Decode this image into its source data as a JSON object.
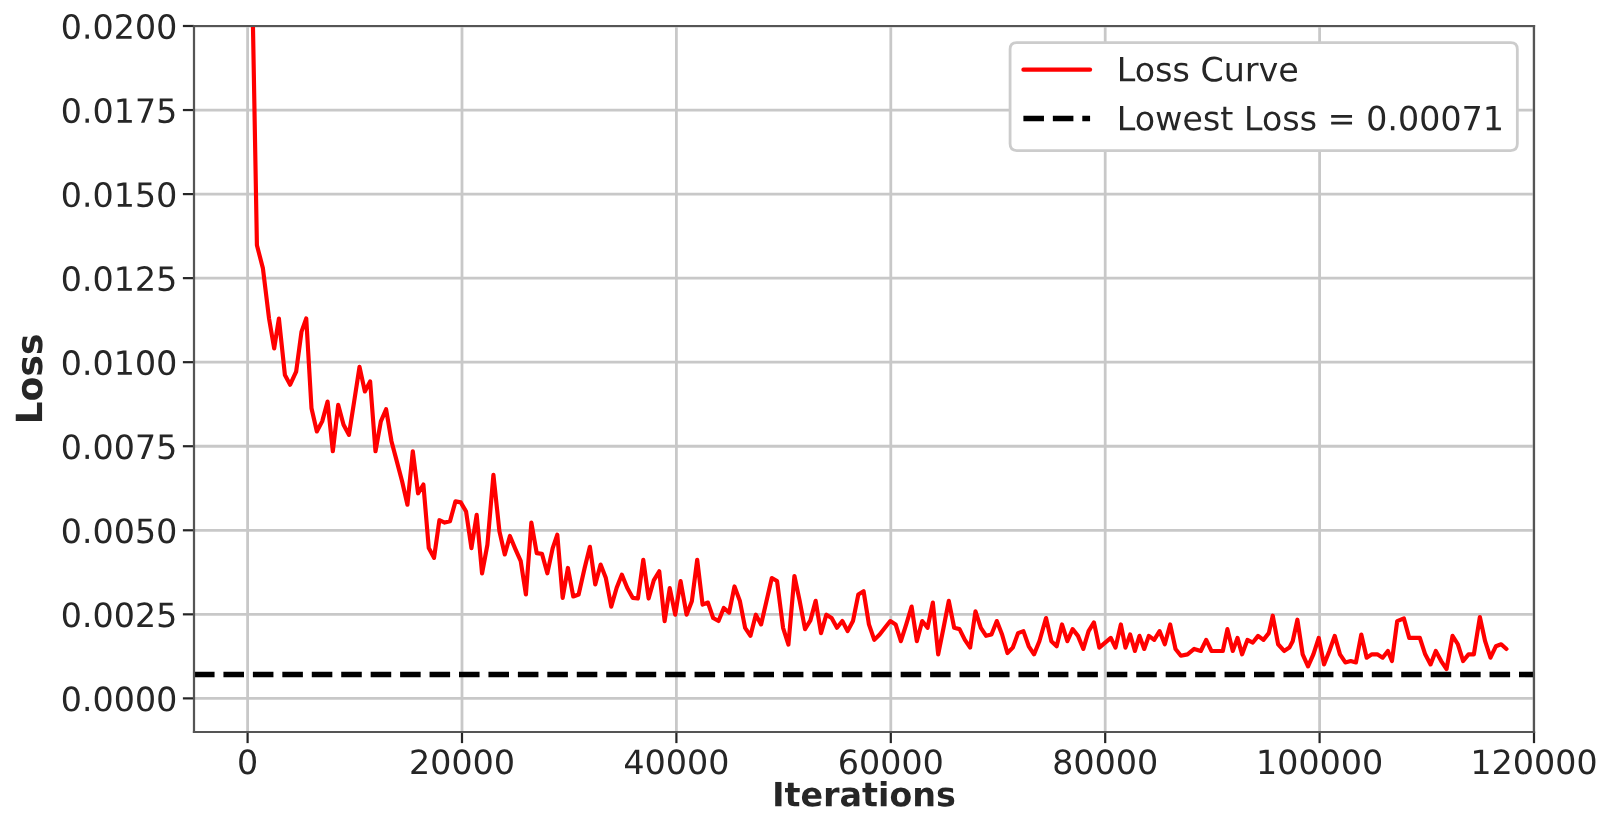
{
  "chart_data": {
    "type": "line",
    "xlabel": "Iterations",
    "ylabel": "Loss",
    "xlim": [
      -5000,
      120000
    ],
    "xticks": [
      0,
      20000,
      40000,
      60000,
      80000,
      100000,
      120000
    ],
    "ylim": [
      -0.001,
      0.02
    ],
    "yticks": [
      {
        "value": 0,
        "label": "0.0000"
      },
      {
        "value": 0.0025,
        "label": "0.0025"
      },
      {
        "value": 0.005,
        "label": "0.0050"
      },
      {
        "value": 0.0075,
        "label": "0.0075"
      },
      {
        "value": 0.01,
        "label": "0.0100"
      },
      {
        "value": 0.0125,
        "label": "0.0125"
      },
      {
        "value": 0.015,
        "label": "0.0150"
      },
      {
        "value": 0.0175,
        "label": "0.0175"
      },
      {
        "value": 0.02,
        "label": "0.0200"
      }
    ],
    "grid": true,
    "legend": "top right",
    "line_style": "solid",
    "ref_lines": [
      {
        "axis": "y",
        "value": 0.00071,
        "label": "Lowest Loss = 0.00071",
        "color": "#000000",
        "line_style": "dashed"
      }
    ],
    "series": [
      {
        "name": "Loss Curve",
        "color": "#ff0000",
        "x": [
          500,
          870,
          1430,
          2000,
          2480,
          2920,
          3480,
          3970,
          4530,
          5030,
          5470,
          5960,
          6460,
          6960,
          7460,
          7950,
          8450,
          8950,
          9450,
          9940,
          10440,
          10940,
          11430,
          11930,
          12430,
          12920,
          13420,
          13920,
          14410,
          14910,
          15410,
          15900,
          16400,
          16900,
          17390,
          17890,
          18390,
          18880,
          19390,
          19880,
          20380,
          20880,
          21370,
          21870,
          22370,
          22930,
          23490,
          23990,
          24470,
          24980,
          25480,
          25960,
          26470,
          26970,
          27460,
          27960,
          28460,
          28890,
          29390,
          29880,
          30380,
          30880,
          31440,
          31930,
          32430,
          32930,
          33420,
          33920,
          34430,
          34910,
          35410,
          35920,
          36410,
          36910,
          37410,
          37900,
          38400,
          38900,
          39380,
          39890,
          40390,
          40950,
          41440,
          41940,
          42440,
          42940,
          43430,
          43930,
          44420,
          44920,
          45420,
          45920,
          46410,
          46910,
          47410,
          47900,
          48400,
          48900,
          49390,
          49950,
          50450,
          51010,
          51500,
          52000,
          52500,
          52990,
          53490,
          53990,
          54480,
          54980,
          55480,
          55970,
          56470,
          56970,
          57460,
          57960,
          58460,
          58960,
          59450,
          59950,
          60450,
          60940,
          61440,
          61940,
          62430,
          62930,
          63430,
          63920,
          64420,
          64920,
          65410,
          65910,
          66410,
          66910,
          67400,
          67900,
          68400,
          68890,
          69390,
          69890,
          70380,
          70880,
          71380,
          71870,
          72370,
          72870,
          73360,
          73860,
          74480,
          74980,
          75470,
          75970,
          76470,
          76960,
          77460,
          77960,
          78450,
          78950,
          79450,
          80520,
          80960,
          81460,
          81890,
          82330,
          82770,
          83200,
          83640,
          84070,
          84570,
          85070,
          85560,
          86060,
          86560,
          87060,
          87680,
          88300,
          88920,
          89420,
          89910,
          90470,
          90970,
          91400,
          91900,
          92340,
          92770,
          93270,
          93770,
          94260,
          94760,
          95260,
          95630,
          96130,
          96690,
          97180,
          97490,
          97930,
          98420,
          98920,
          99420,
          99920,
          100410,
          100910,
          101410,
          101900,
          102400,
          102900,
          103390,
          103890,
          104390,
          104880,
          105380,
          105880,
          106370,
          106750,
          107240,
          107860,
          108360,
          108860,
          109350,
          109850,
          110350,
          110840,
          111340,
          111840,
          112400,
          112900,
          113390,
          113890,
          114390,
          114950,
          115440,
          115940,
          116440,
          116940,
          117430
        ],
        "values": [
          0.02,
          0.01348,
          0.01279,
          0.0113,
          0.01041,
          0.0113,
          0.00962,
          0.00933,
          0.00972,
          0.01091,
          0.0113,
          0.00863,
          0.00794,
          0.00824,
          0.00883,
          0.00735,
          0.00873,
          0.00814,
          0.00784,
          0.00883,
          0.00986,
          0.00913,
          0.00943,
          0.00735,
          0.00824,
          0.0086,
          0.00765,
          0.00705,
          0.00646,
          0.00576,
          0.00735,
          0.0061,
          0.00636,
          0.00447,
          0.00418,
          0.0053,
          0.00523,
          0.00527,
          0.00586,
          0.00583,
          0.00556,
          0.00447,
          0.00546,
          0.00372,
          0.00457,
          0.00665,
          0.00497,
          0.00428,
          0.00483,
          0.00444,
          0.00408,
          0.00309,
          0.00523,
          0.00432,
          0.0043,
          0.00372,
          0.00447,
          0.00487,
          0.00299,
          0.00388,
          0.00303,
          0.00309,
          0.00388,
          0.00451,
          0.00339,
          0.00398,
          0.00358,
          0.00273,
          0.00329,
          0.00368,
          0.00329,
          0.00299,
          0.00297,
          0.00412,
          0.00297,
          0.00352,
          0.00378,
          0.0023,
          0.00328,
          0.00249,
          0.00349,
          0.00249,
          0.00289,
          0.00412,
          0.00279,
          0.00285,
          0.00239,
          0.0023,
          0.00269,
          0.00255,
          0.00333,
          0.0029,
          0.0021,
          0.00186,
          0.00249,
          0.0022,
          0.00289,
          0.00358,
          0.00349,
          0.0021,
          0.0016,
          0.00364,
          0.0029,
          0.00206,
          0.00232,
          0.0029,
          0.00194,
          0.00249,
          0.00239,
          0.0021,
          0.0023,
          0.002,
          0.0023,
          0.00309,
          0.00319,
          0.0022,
          0.00174,
          0.0019,
          0.0021,
          0.0023,
          0.0022,
          0.0017,
          0.0022,
          0.00273,
          0.0017,
          0.0023,
          0.0021,
          0.00285,
          0.00131,
          0.0021,
          0.0029,
          0.0021,
          0.00206,
          0.00174,
          0.00151,
          0.00259,
          0.0021,
          0.00186,
          0.0019,
          0.0023,
          0.0019,
          0.00135,
          0.00151,
          0.00194,
          0.002,
          0.00155,
          0.00131,
          0.0017,
          0.00239,
          0.0017,
          0.00155,
          0.0022,
          0.0017,
          0.00206,
          0.00186,
          0.00147,
          0.002,
          0.00226,
          0.00151,
          0.0018,
          0.00151,
          0.0022,
          0.00151,
          0.0019,
          0.00141,
          0.00186,
          0.00147,
          0.00186,
          0.00174,
          0.002,
          0.00161,
          0.0022,
          0.00147,
          0.00127,
          0.00131,
          0.00147,
          0.00141,
          0.00174,
          0.00141,
          0.00141,
          0.00141,
          0.00206,
          0.00141,
          0.0018,
          0.00131,
          0.00174,
          0.00166,
          0.00186,
          0.00174,
          0.00194,
          0.00246,
          0.00161,
          0.00141,
          0.00151,
          0.0017,
          0.00234,
          0.00131,
          0.00095,
          0.00131,
          0.0018,
          0.00101,
          0.00141,
          0.00186,
          0.00131,
          0.00107,
          0.00111,
          0.00107,
          0.0019,
          0.00121,
          0.00131,
          0.00131,
          0.00121,
          0.00141,
          0.00111,
          0.0023,
          0.00238,
          0.0018,
          0.0018,
          0.0018,
          0.00131,
          0.00101,
          0.00141,
          0.00111,
          0.00087,
          0.00186,
          0.00161,
          0.00111,
          0.00131,
          0.00131,
          0.00242,
          0.0017,
          0.00121,
          0.00155,
          0.00161,
          0.00147
        ]
      }
    ]
  }
}
